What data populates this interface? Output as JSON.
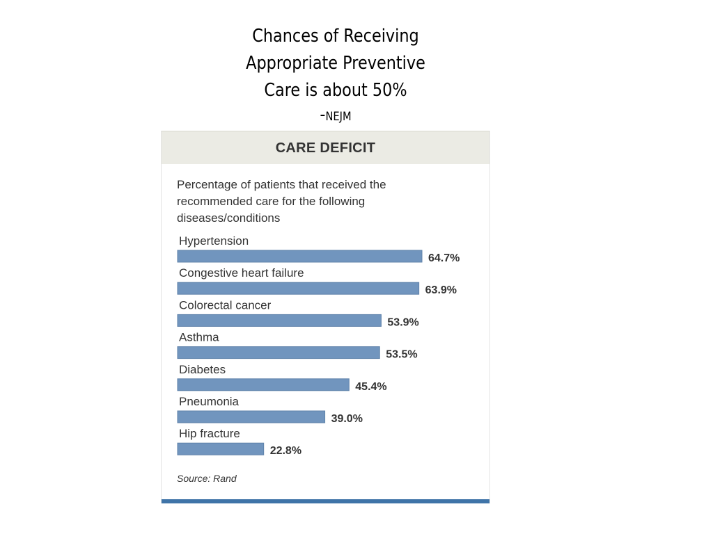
{
  "slide": {
    "title_lines": [
      "Chances of Receiving",
      "Appropriate Preventive",
      "Care is about 50%"
    ],
    "citation_dash": "-",
    "citation": "NEJM"
  },
  "chart_data": {
    "type": "bar",
    "orientation": "horizontal",
    "title": "CARE DEFICIT",
    "subtitle_lines": [
      "Percentage of patients that received the",
      "recommended care for the following",
      "diseases/conditions"
    ],
    "categories": [
      "Hypertension",
      "Congestive heart failure",
      "Colorectal cancer",
      "Asthma",
      "Diabetes",
      "Pneumonia",
      "Hip fracture"
    ],
    "values": [
      64.7,
      63.9,
      53.9,
      53.5,
      45.4,
      39.0,
      22.8
    ],
    "value_labels": [
      "64.7%",
      "63.9%",
      "53.9%",
      "53.5%",
      "45.4%",
      "39.0%",
      "22.8%"
    ],
    "unit": "%",
    "xlim": [
      0,
      100
    ],
    "grid": false,
    "source": "Source: Rand",
    "colors": {
      "bar": "#7195be",
      "bar_edge": "#5f82aa",
      "header_bg": "#ebebe4",
      "accent_rule": "#3f74a8",
      "text": "#333333"
    }
  }
}
